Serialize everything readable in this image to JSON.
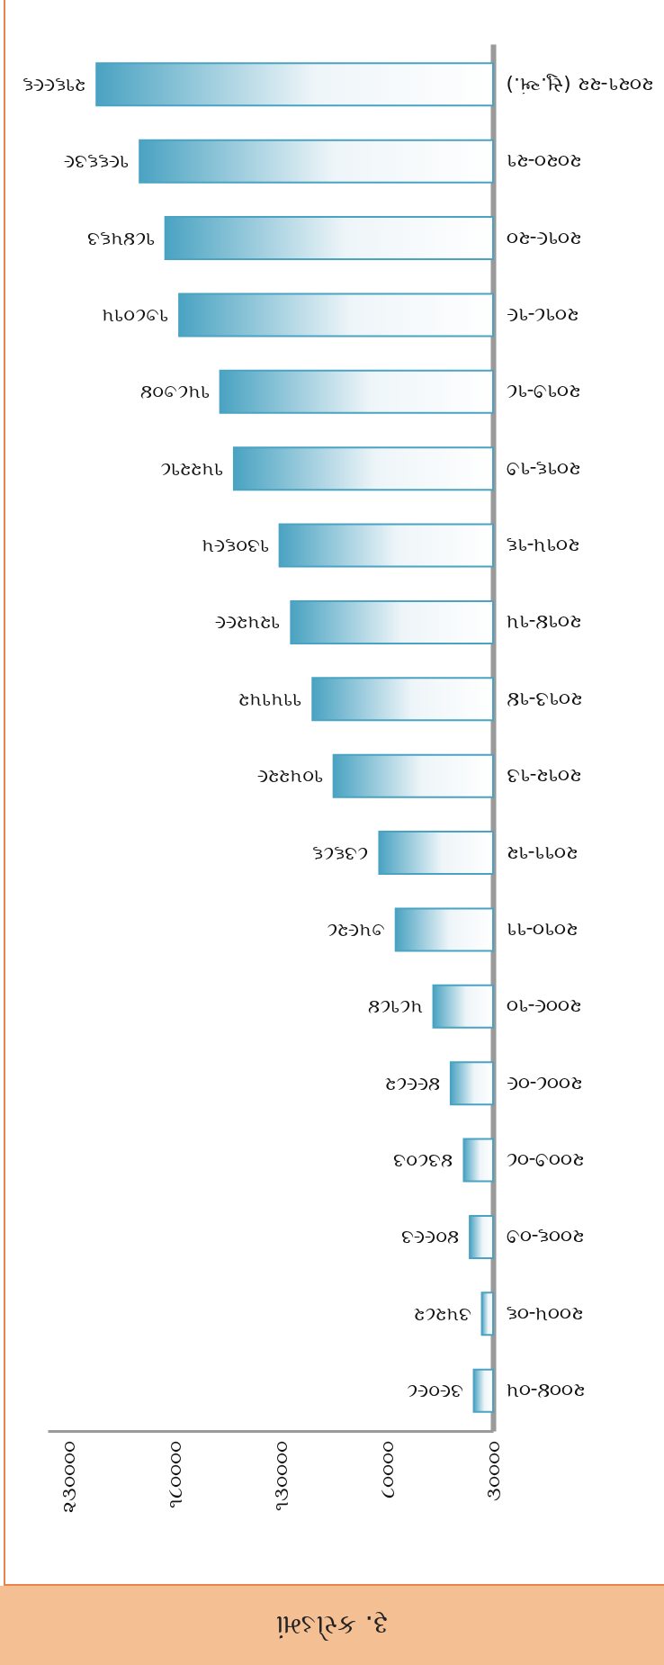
{
  "chart_data": {
    "type": "bar",
    "orientation": "horizontal",
    "title": "રૂ. કરોડમાં",
    "categories": [
      "૨૦૨૧-૨૨ (સુ.અં.)",
      "૨૦૨૦-૨૧",
      "૨૦૧૯-૨૦",
      "૨૦૧૮-૧૯",
      "૨૦૧૭-૧૮",
      "૨૦૧૬-૧૭",
      "૨૦૧૫-૧૬",
      "૨૦૧૪-૧૫",
      "૨૦૧૩-૧૪",
      "૨૦૧૨-૧૩",
      "૨૦૧૧-૧૨",
      "૨૦૧૦-૧૧",
      "૨૦૦૯-૧૦",
      "૨૦૦૮-૦૯",
      "૨૦૦૭-૦૮",
      "૨૦૦૬-૦૭",
      "૨૦૦૫-૦૬",
      "૨૦૦૪-૦૫"
    ],
    "values": [
      216996,
      196639,
      184563,
      178015,
      158704,
      152218,
      130695,
      125299,
      115152,
      105229,
      83686,
      75928,
      58184,
      49982,
      43803,
      40993,
      35282,
      39098
    ],
    "value_labels": [
      "૨૧૬૯૯૬",
      "૧૯૬૬૩૯",
      "૧૮૪૫૬૩",
      "૧૭૮૦૧૫",
      "૧૫૮૭૦૪",
      "૧૫૨૨૧૮",
      "૧૩૦૬૯૫",
      "૧૨૫૨૯૯",
      "૧૧૫૧૫૨",
      "૧૦૫૨૨૯",
      "૮૩૬૮૬",
      "૭૫૯૨૮",
      "૫૮૧૮૪",
      "૪૯૯૮૨",
      "૪૩૮૦૩",
      "૪૦૯૯૩",
      "૩૫૨૮૨",
      "૩૯૦૯૮"
    ],
    "color": "#4aa3c2",
    "xlim": [
      240000,
      30000
    ],
    "xticks": [
      {
        "value": 30000,
        "label": "૩૦૦૦૦"
      },
      {
        "value": 80000,
        "label": "૮૦૦૦૦"
      },
      {
        "value": 130000,
        "label": "૧૩૦૦૦૦"
      },
      {
        "value": 180000,
        "label": "૧૮૦૦૦૦"
      },
      {
        "value": 230000,
        "label": "૨૩૦૦૦૦"
      }
    ],
    "grid": false
  }
}
